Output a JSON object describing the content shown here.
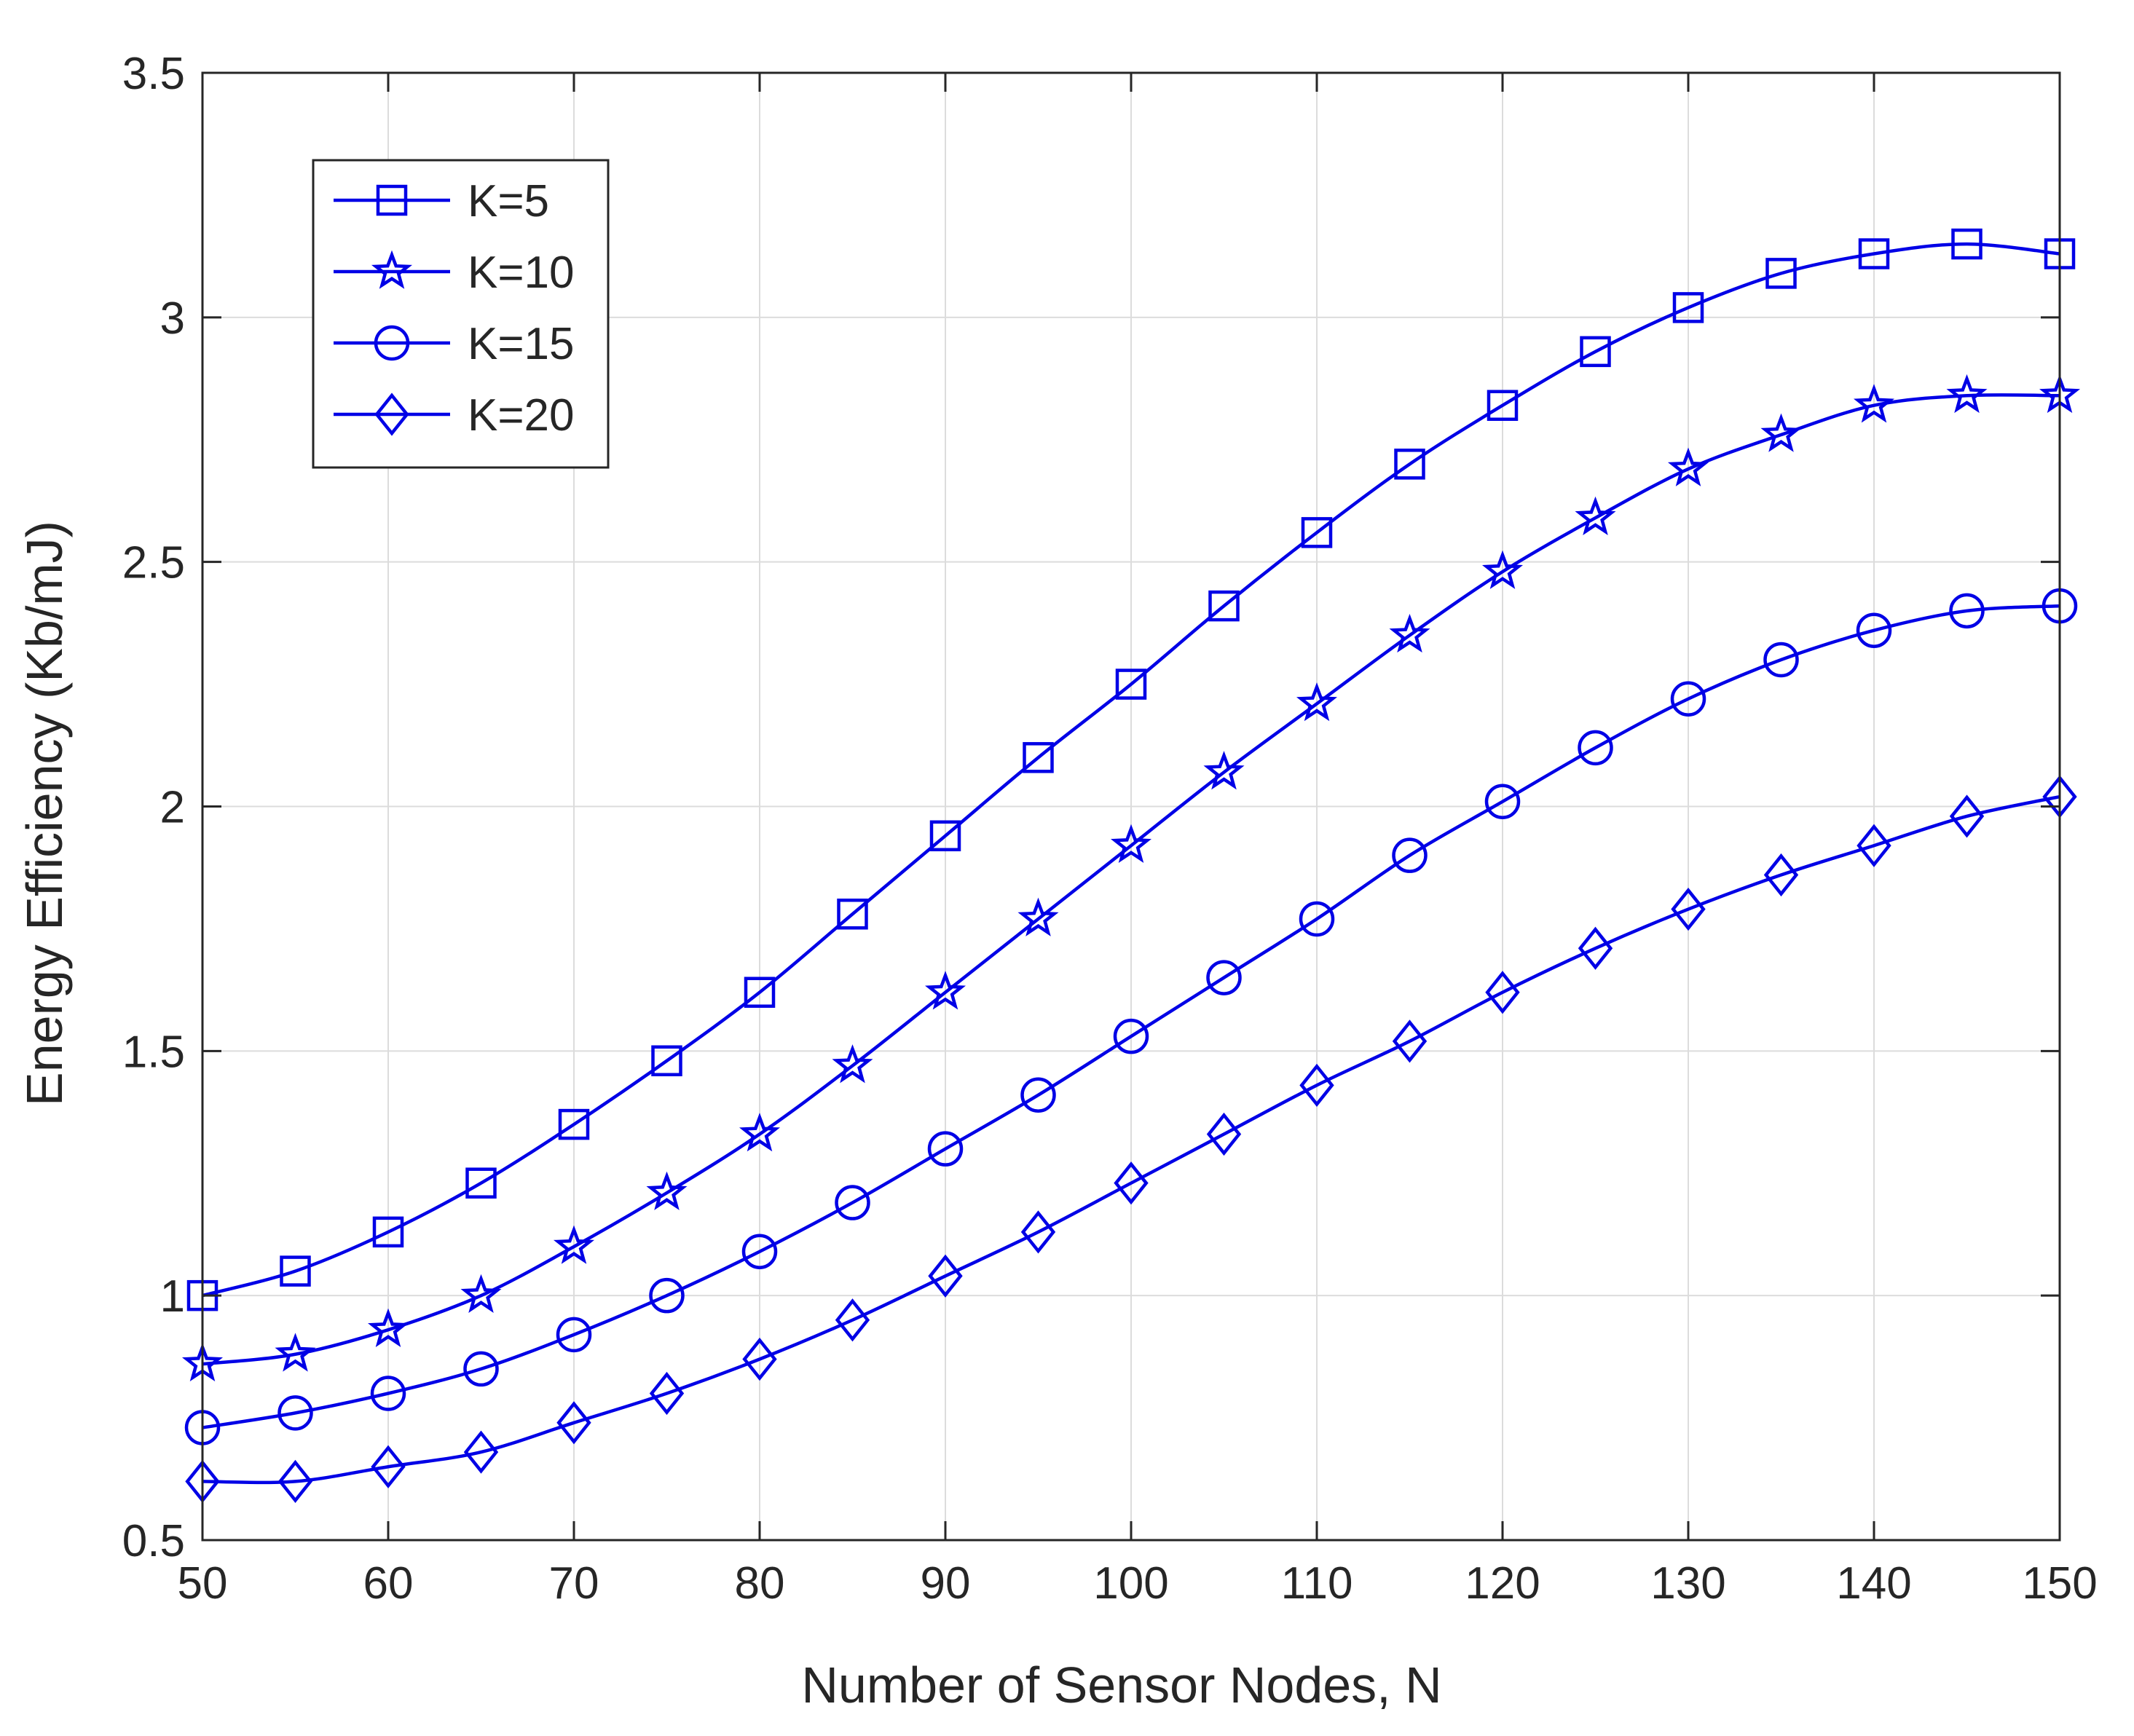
{
  "chart_data": {
    "type": "line",
    "title": "",
    "xlabel": "Number of Sensor Nodes, N",
    "ylabel": "Energy Efficiency (Kb/mJ)",
    "xlim": [
      50,
      150
    ],
    "ylim": [
      0.5,
      3.5
    ],
    "grid": true,
    "legend_position": "top-left",
    "xticks": [
      50,
      60,
      70,
      80,
      90,
      100,
      110,
      120,
      130,
      140,
      150
    ],
    "xtick_labels": [
      "50",
      "60",
      "70",
      "80",
      "90",
      "100",
      "110",
      "120",
      "130",
      "140",
      "150"
    ],
    "yticks": [
      0.5,
      1,
      1.5,
      2,
      2.5,
      3,
      3.5
    ],
    "ytick_labels": [
      "0.5",
      "1",
      "1.5",
      "2",
      "2.5",
      "3",
      "3.5"
    ],
    "x": [
      50,
      55,
      60,
      65,
      70,
      75,
      80,
      85,
      90,
      95,
      100,
      105,
      110,
      115,
      120,
      125,
      130,
      135,
      140,
      145,
      150
    ],
    "series": [
      {
        "name": "K=5",
        "marker": "square",
        "color": "#0000e6",
        "values": [
          1.0,
          1.05,
          1.13,
          1.23,
          1.35,
          1.48,
          1.62,
          1.78,
          1.94,
          2.1,
          2.25,
          2.41,
          2.56,
          2.7,
          2.82,
          2.93,
          3.02,
          3.09,
          3.13,
          3.15,
          3.13
        ]
      },
      {
        "name": "K=10",
        "marker": "star",
        "color": "#0000e6",
        "values": [
          0.86,
          0.88,
          0.93,
          1.0,
          1.1,
          1.21,
          1.33,
          1.47,
          1.62,
          1.77,
          1.92,
          2.07,
          2.21,
          2.35,
          2.48,
          2.59,
          2.69,
          2.76,
          2.82,
          2.84,
          2.84
        ]
      },
      {
        "name": "K=15",
        "marker": "circle",
        "color": "#0000e6",
        "values": [
          0.73,
          0.76,
          0.8,
          0.85,
          0.92,
          1.0,
          1.09,
          1.19,
          1.3,
          1.41,
          1.53,
          1.65,
          1.77,
          1.9,
          2.01,
          2.12,
          2.22,
          2.3,
          2.36,
          2.4,
          2.41
        ]
      },
      {
        "name": "K=20",
        "marker": "diamond",
        "color": "#0000e6",
        "values": [
          0.62,
          0.62,
          0.65,
          0.68,
          0.74,
          0.8,
          0.87,
          0.95,
          1.04,
          1.13,
          1.23,
          1.33,
          1.43,
          1.52,
          1.62,
          1.71,
          1.79,
          1.86,
          1.92,
          1.98,
          2.02
        ]
      }
    ]
  }
}
